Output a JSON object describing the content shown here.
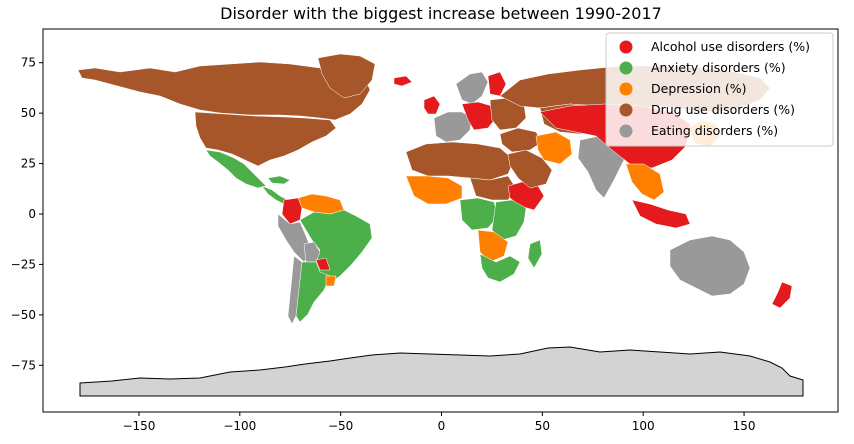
{
  "title": "Disorder with the biggest increase between 1990-2017",
  "x_ticks": [
    {
      "label": "−150",
      "value": -150
    },
    {
      "label": "−100",
      "value": -100
    },
    {
      "label": "−50",
      "value": -50
    },
    {
      "label": "0",
      "value": 0
    },
    {
      "label": "50",
      "value": 50
    },
    {
      "label": "100",
      "value": 100
    },
    {
      "label": "150",
      "value": 150
    }
  ],
  "y_ticks": [
    {
      "label": "75",
      "value": 75
    },
    {
      "label": "50",
      "value": 50
    },
    {
      "label": "25",
      "value": 25
    },
    {
      "label": "0",
      "value": 0
    },
    {
      "label": "−25",
      "value": -25
    },
    {
      "label": "−50",
      "value": -50
    },
    {
      "label": "−75",
      "value": -75
    }
  ],
  "legend": {
    "placement": "top-right",
    "entries": [
      {
        "label": "Alcohol use disorders (%)",
        "color": "#e41a1c"
      },
      {
        "label": "Anxiety disorders (%)",
        "color": "#4daf4a"
      },
      {
        "label": "Depression (%)",
        "color": "#ff7f00"
      },
      {
        "label": "Drug use disorders (%)",
        "color": "#a65628"
      },
      {
        "label": "Eating disorders (%)",
        "color": "#999999"
      }
    ]
  },
  "colors": {
    "alcohol": "#e41a1c",
    "anxiety": "#4daf4a",
    "depression": "#ff7f00",
    "drug": "#a65628",
    "eating": "#999999",
    "no_data": "#d3d3d3"
  },
  "regions": [
    {
      "name": "canada-alaska",
      "category": "drug"
    },
    {
      "name": "greenland",
      "category": "drug"
    },
    {
      "name": "usa",
      "category": "drug"
    },
    {
      "name": "mexico",
      "category": "anxiety"
    },
    {
      "name": "central-america",
      "category": "anxiety"
    },
    {
      "name": "cuba",
      "category": "anxiety"
    },
    {
      "name": "venezuela-guyana",
      "category": "depression"
    },
    {
      "name": "colombia",
      "category": "alcohol"
    },
    {
      "name": "ecuador-peru",
      "category": "eating"
    },
    {
      "name": "brazil",
      "category": "anxiety"
    },
    {
      "name": "bolivia",
      "category": "eating"
    },
    {
      "name": "paraguay",
      "category": "alcohol"
    },
    {
      "name": "chile",
      "category": "eating"
    },
    {
      "name": "argentina",
      "category": "anxiety"
    },
    {
      "name": "uruguay",
      "category": "depression"
    },
    {
      "name": "iceland",
      "category": "alcohol"
    },
    {
      "name": "uk-ireland",
      "category": "alcohol"
    },
    {
      "name": "scandinavia",
      "category": "eating"
    },
    {
      "name": "finland",
      "category": "alcohol"
    },
    {
      "name": "western-europe",
      "category": "eating"
    },
    {
      "name": "central-europe",
      "category": "alcohol"
    },
    {
      "name": "eastern-europe",
      "category": "drug"
    },
    {
      "name": "russia",
      "category": "drug"
    },
    {
      "name": "north-africa",
      "category": "drug"
    },
    {
      "name": "west-africa",
      "category": "depression"
    },
    {
      "name": "sahel-east",
      "category": "drug"
    },
    {
      "name": "horn-of-africa",
      "category": "alcohol"
    },
    {
      "name": "central-africa",
      "category": "anxiety"
    },
    {
      "name": "east-africa",
      "category": "anxiety"
    },
    {
      "name": "angola-zambia",
      "category": "depression"
    },
    {
      "name": "southern-africa",
      "category": "anxiety"
    },
    {
      "name": "madagascar",
      "category": "anxiety"
    },
    {
      "name": "middle-east",
      "category": "drug"
    },
    {
      "name": "iran",
      "category": "depression"
    },
    {
      "name": "arabia",
      "category": "drug"
    },
    {
      "name": "central-asia",
      "category": "drug"
    },
    {
      "name": "india",
      "category": "eating"
    },
    {
      "name": "china-mongolia",
      "category": "alcohol"
    },
    {
      "name": "southeast-asia",
      "category": "depression"
    },
    {
      "name": "indonesia",
      "category": "alcohol"
    },
    {
      "name": "japan-korea",
      "category": "depression"
    },
    {
      "name": "australia",
      "category": "eating"
    },
    {
      "name": "new-zealand",
      "category": "alcohol"
    },
    {
      "name": "antarctica",
      "category": "no_data"
    }
  ]
}
